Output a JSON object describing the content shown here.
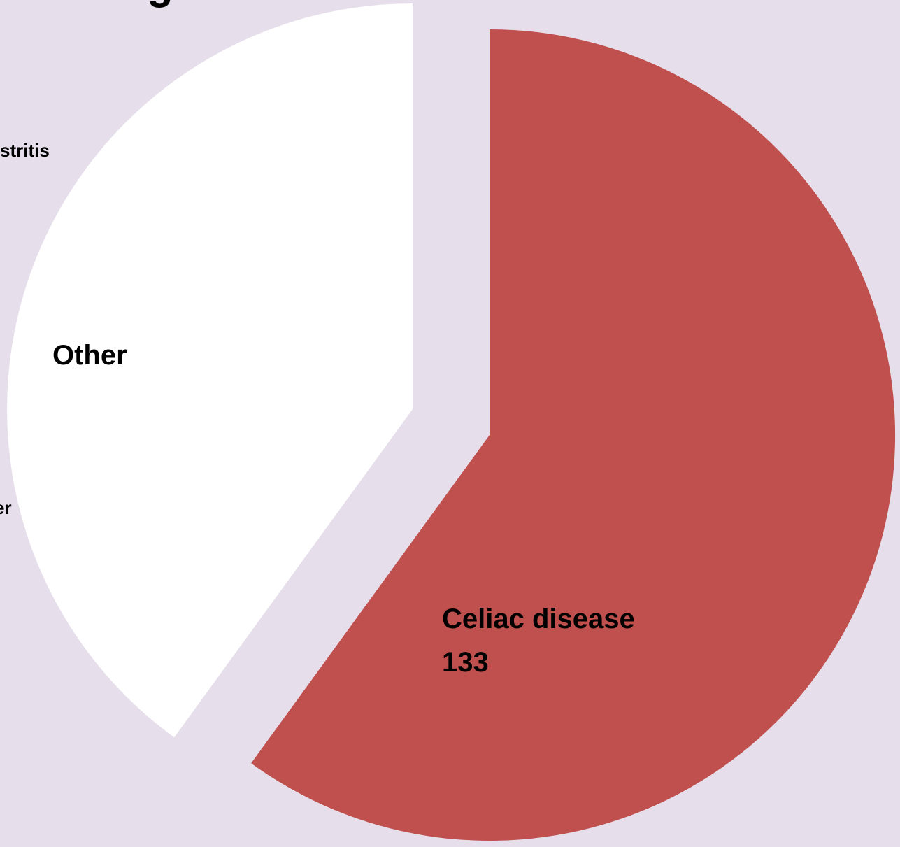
{
  "chart_data": {
    "type": "pie",
    "title_fragment": "g",
    "slices": [
      {
        "label": "Celiac disease",
        "value_label": "133",
        "share": 0.6,
        "color": "#C0504D"
      },
      {
        "label": "Other",
        "value_label": "",
        "share": 0.4,
        "color": "#FFFFFF"
      }
    ],
    "cropped_labels": [
      "stritis",
      "er"
    ],
    "background": "#E6DFEB",
    "legend": "none"
  }
}
